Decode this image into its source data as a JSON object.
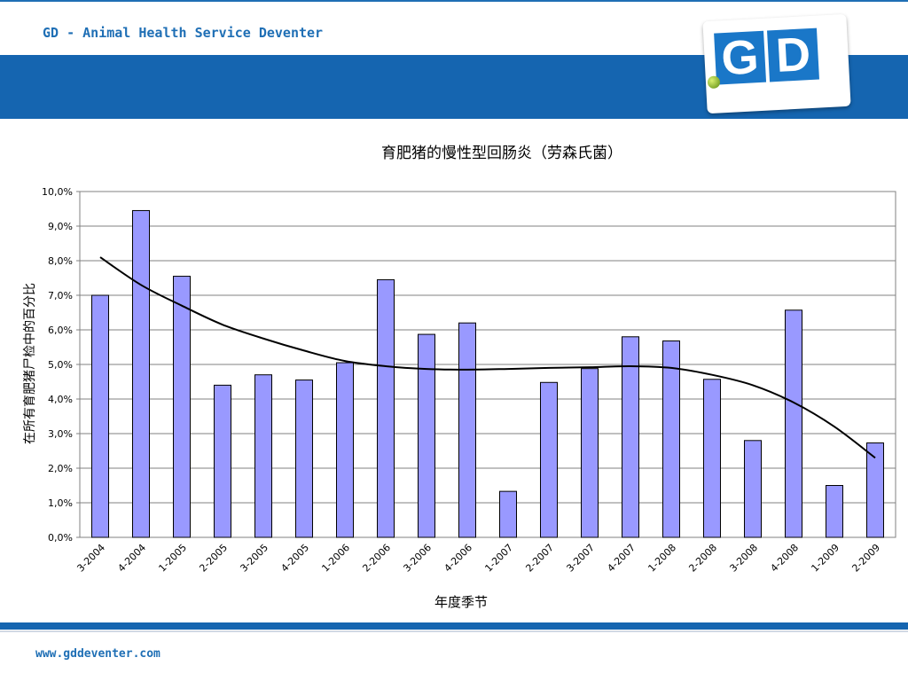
{
  "header": {
    "org_text": "GD - Animal Health Service Deventer",
    "logo_text": "GD"
  },
  "footer": {
    "url_text": "www.gddeventer.com"
  },
  "colors": {
    "brand_blue": "#1565b0",
    "bar_fill": "#9999ff",
    "trend_line": "#000000"
  },
  "chart_data": {
    "type": "bar",
    "title": "育肥猪的慢性型回肠炎（劳森氏菌）",
    "xlabel": "年度季节",
    "ylabel": "在所有育肥猪尸检中的百分比",
    "ylim": [
      0,
      10
    ],
    "yticks": [
      "0,0%",
      "1,0%",
      "2,0%",
      "3,0%",
      "4,0%",
      "5,0%",
      "6,0%",
      "7,0%",
      "8,0%",
      "9,0%",
      "10,0%"
    ],
    "grid": true,
    "categories": [
      "3-2004",
      "4-2004",
      "1-2005",
      "2-2005",
      "3-2005",
      "4-2005",
      "1-2006",
      "2-2006",
      "3-2006",
      "4-2006",
      "1-2007",
      "2-2007",
      "3-2007",
      "4-2007",
      "1-2008",
      "2-2008",
      "3-2008",
      "4-2008",
      "1-2009",
      "2-2009"
    ],
    "series": [
      {
        "values": [
          7.0,
          9.45,
          7.55,
          4.4,
          4.7,
          4.55,
          5.05,
          7.45,
          5.87,
          6.2,
          1.33,
          4.48,
          4.88,
          5.8,
          5.68,
          4.57,
          2.8,
          6.57,
          1.5,
          2.73
        ]
      }
    ],
    "trendline": {
      "type": "polynomial",
      "values": [
        8.1,
        7.3,
        6.7,
        6.15,
        5.75,
        5.4,
        5.1,
        4.95,
        4.87,
        4.85,
        4.87,
        4.9,
        4.92,
        4.95,
        4.9,
        4.7,
        4.4,
        3.9,
        3.2,
        2.3
      ]
    }
  }
}
